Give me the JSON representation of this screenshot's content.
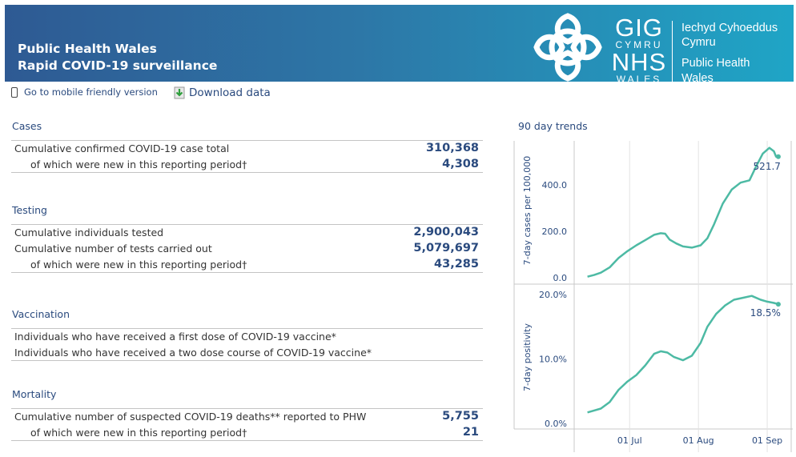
{
  "header": {
    "title_line1": "Public Health Wales",
    "title_line2": "Rapid COVID-19 surveillance",
    "gig_top": "GIG",
    "gig_cymru": "CYMRU",
    "nhs": "NHS",
    "wales": "WALES",
    "welsh_line1": "Iechyd Cyhoeddus",
    "welsh_line2": "Cymru",
    "english_line1": "Public Health",
    "english_line2": "Wales"
  },
  "toolbar": {
    "mobile_label": "Go to mobile friendly version",
    "download_label": "Download data",
    "icons": [
      "phone-icon",
      "download-icon"
    ]
  },
  "sections": {
    "cases": {
      "title": "Cases",
      "rows": [
        {
          "label": "Cumulative confirmed COVID-19 case total",
          "value": "310,368"
        },
        {
          "label": "of which were new in this reporting period†",
          "value": "4,308"
        }
      ]
    },
    "testing": {
      "title": "Testing",
      "rows": [
        {
          "label": "Cumulative individuals tested",
          "value": "2,900,043"
        },
        {
          "label": "Cumulative number of tests carried out",
          "value": "5,079,697"
        },
        {
          "label": "of which were new in this reporting period†",
          "value": "43,285"
        }
      ]
    },
    "vaccination": {
      "title": "Vaccination",
      "rows": [
        {
          "label": "Individuals who have received a first dose of COVID-19 vaccine*",
          "value": ""
        },
        {
          "label": "Individuals who have received a two dose course of COVID-19 vaccine*",
          "value": ""
        }
      ]
    },
    "mortality": {
      "title": "Mortality",
      "rows": [
        {
          "label": "Cumulative number of suspected COVID-19 deaths** reported to PHW",
          "value": "5,755"
        },
        {
          "label": "of which were new in this reporting period†",
          "value": "21"
        }
      ]
    }
  },
  "trends": {
    "title": "90 day trends",
    "line_color": "#4dbaa4"
  },
  "chart_data": [
    {
      "type": "line",
      "ylabel": "7-day cases per 100,000",
      "yticks": [
        "0.0",
        "200.0",
        "400.0"
      ],
      "ylim": [
        -10,
        590
      ],
      "grid": false,
      "end_label": "521.7",
      "series": [
        {
          "x": [
            "2021-06-12",
            "2021-06-15",
            "2021-06-18",
            "2021-06-22",
            "2021-06-26",
            "2021-06-30",
            "2021-07-04",
            "2021-07-08",
            "2021-07-12",
            "2021-07-15",
            "2021-07-17",
            "2021-07-19",
            "2021-07-22",
            "2021-07-25",
            "2021-07-29",
            "2021-08-02",
            "2021-08-05",
            "2021-08-08",
            "2021-08-12",
            "2021-08-16",
            "2021-08-20",
            "2021-08-24",
            "2021-08-27",
            "2021-08-30",
            "2021-09-02",
            "2021-09-04",
            "2021-09-05",
            "2021-09-06"
          ],
          "values": [
            5,
            12,
            22,
            45,
            85,
            115,
            140,
            162,
            185,
            192,
            190,
            165,
            148,
            135,
            130,
            140,
            170,
            230,
            320,
            380,
            410,
            420,
            480,
            535,
            560,
            545,
            522,
            521.7
          ]
        }
      ]
    },
    {
      "type": "line",
      "ylabel": "7-day positivity",
      "yticks": [
        "0.0%",
        "10.0%",
        "20.0%"
      ],
      "ylim": [
        -0.5,
        21
      ],
      "grid": false,
      "end_label": "18.5%",
      "x_ticks": [
        "01 Jul",
        "01 Aug",
        "01 Sep"
      ],
      "series": [
        {
          "x": [
            "2021-06-12",
            "2021-06-15",
            "2021-06-18",
            "2021-06-22",
            "2021-06-26",
            "2021-06-30",
            "2021-07-04",
            "2021-07-08",
            "2021-07-12",
            "2021-07-15",
            "2021-07-18",
            "2021-07-21",
            "2021-07-25",
            "2021-07-29",
            "2021-08-02",
            "2021-08-05",
            "2021-08-09",
            "2021-08-13",
            "2021-08-17",
            "2021-08-21",
            "2021-08-25",
            "2021-08-29",
            "2021-09-01",
            "2021-09-04",
            "2021-09-06"
          ],
          "values": [
            1.7,
            2,
            2.3,
            3.3,
            5.2,
            6.5,
            7.5,
            9,
            10.8,
            11.2,
            11,
            10.3,
            9.8,
            10.5,
            12.5,
            15,
            17,
            18.3,
            19.2,
            19.5,
            19.8,
            19.2,
            18.9,
            18.7,
            18.5
          ]
        }
      ]
    }
  ]
}
